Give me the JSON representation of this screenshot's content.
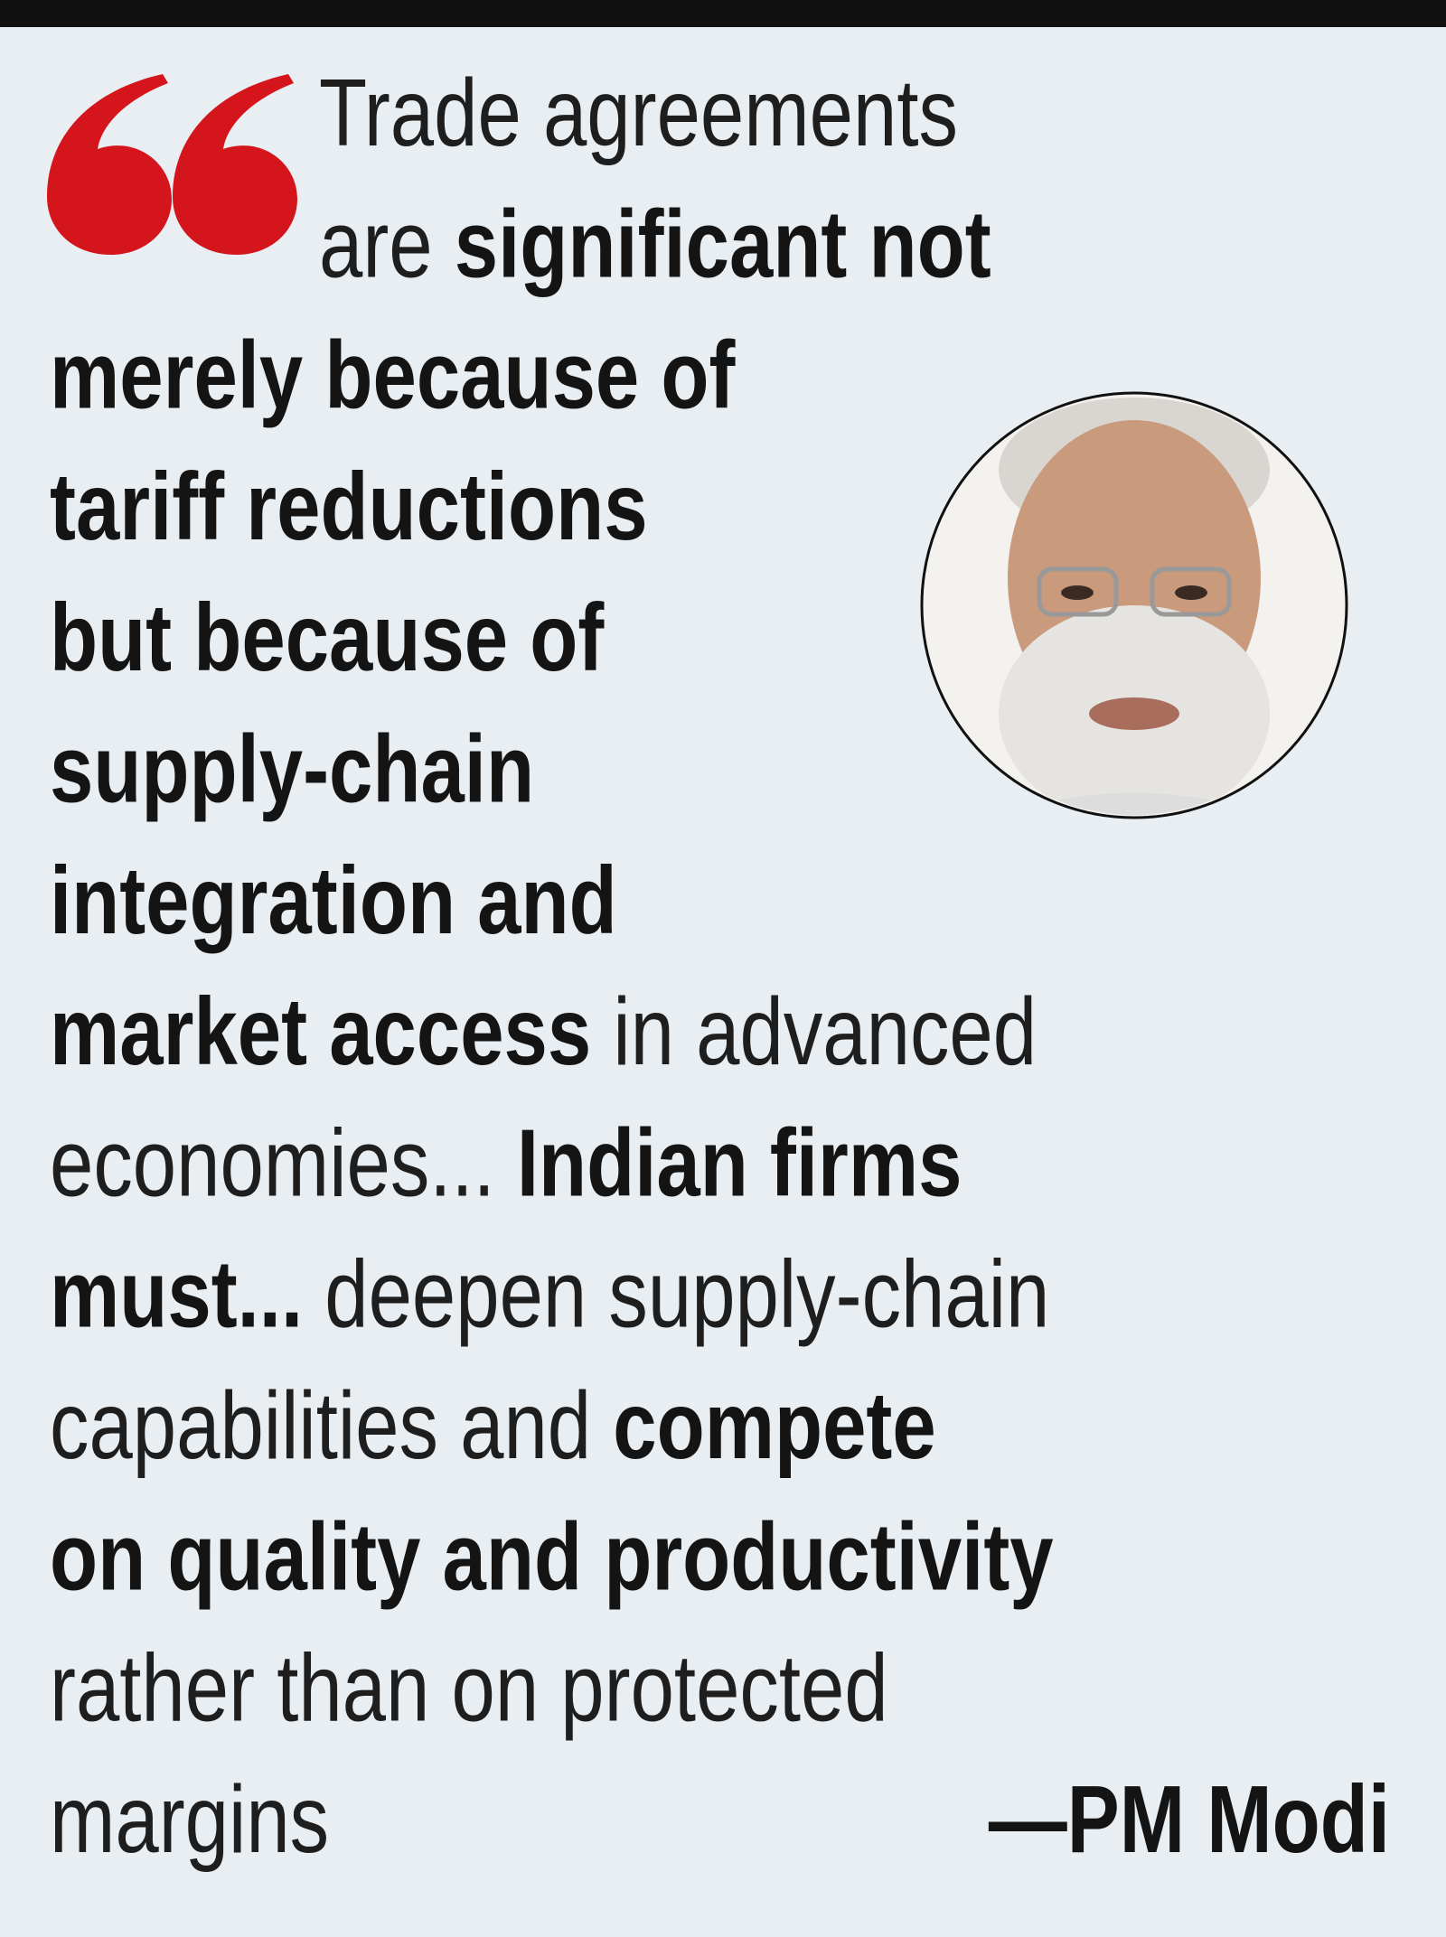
{
  "quote": {
    "lines": [
      {
        "segments": [
          {
            "text": "Trade agreements",
            "bold": false
          }
        ]
      },
      {
        "segments": [
          {
            "text": "are ",
            "bold": false
          },
          {
            "text": "significant not",
            "bold": true
          }
        ]
      },
      {
        "segments": [
          {
            "text": "merely because of",
            "bold": true
          }
        ]
      },
      {
        "segments": [
          {
            "text": "tariff reductions",
            "bold": true
          }
        ]
      },
      {
        "segments": [
          {
            "text": "but because of",
            "bold": true
          }
        ]
      },
      {
        "segments": [
          {
            "text": "supply-chain",
            "bold": true
          }
        ]
      },
      {
        "segments": [
          {
            "text": "integration and",
            "bold": true
          }
        ]
      },
      {
        "segments": [
          {
            "text": "market access",
            "bold": true
          },
          {
            "text": " in advanced",
            "bold": false
          }
        ]
      },
      {
        "segments": [
          {
            "text": "economies... ",
            "bold": false
          },
          {
            "text": "Indian firms",
            "bold": true
          }
        ]
      },
      {
        "segments": [
          {
            "text": "must...",
            "bold": true
          },
          {
            "text": " deepen supply-chain",
            "bold": false
          }
        ]
      },
      {
        "segments": [
          {
            "text": "capabilities and ",
            "bold": false
          },
          {
            "text": "compete",
            "bold": true
          }
        ]
      },
      {
        "segments": [
          {
            "text": "on quality and productivity",
            "bold": true
          }
        ]
      },
      {
        "segments": [
          {
            "text": "rather than on protected",
            "bold": false
          }
        ]
      },
      {
        "segments": [
          {
            "text": "margins",
            "bold": false
          }
        ]
      }
    ],
    "attribution": "—PM Modi"
  }
}
